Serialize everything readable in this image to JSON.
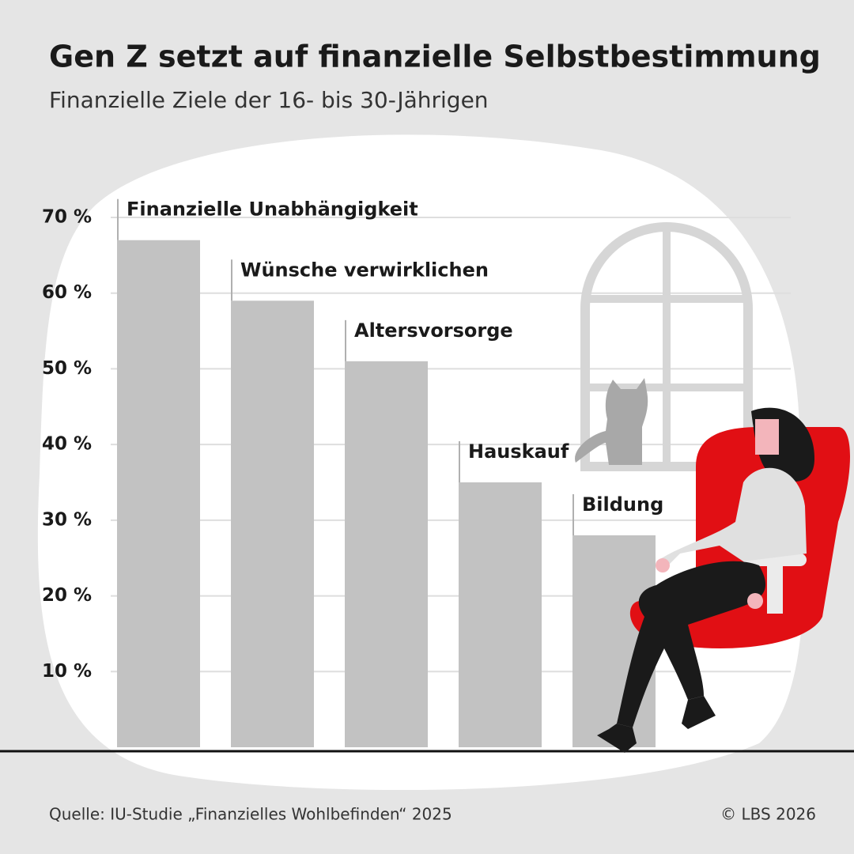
{
  "chart_data": {
    "type": "bar",
    "title": "Gen Z setzt auf finanzielle Selbstbestimmung",
    "subtitle": "Finanzielle Ziele der 16- bis 30-Jährigen",
    "categories": [
      "Finanzielle Unabhängigkeit",
      "Wünsche verwirklichen",
      "Altersvorsorge",
      "Hauskauf",
      "Bildung"
    ],
    "values": [
      67,
      59,
      51,
      35,
      28
    ],
    "color": "#c2c2c2",
    "ylim": [
      0,
      70
    ],
    "yticks": [
      {
        "value": 10,
        "label": "10 %"
      },
      {
        "value": 20,
        "label": "20 %"
      },
      {
        "value": 30,
        "label": "30 %"
      },
      {
        "value": 40,
        "label": "40 %"
      },
      {
        "value": 50,
        "label": "50 %"
      },
      {
        "value": 60,
        "label": "60 %"
      },
      {
        "value": 70,
        "label": "70 %"
      }
    ],
    "grid": true,
    "source": "Quelle: IU-Studie „Finanzielles Wohlbefinden“ 2025",
    "copyright": "© LBS 2026"
  }
}
